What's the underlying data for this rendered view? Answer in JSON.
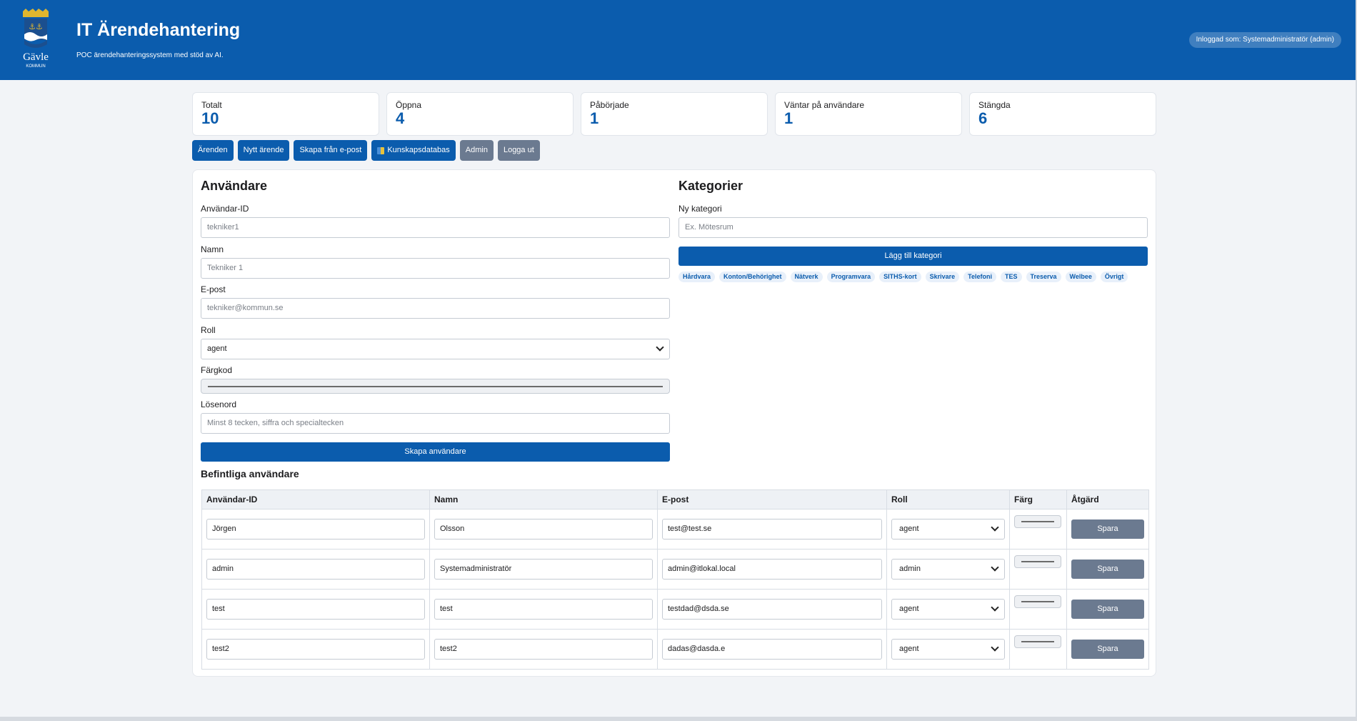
{
  "header": {
    "title": "IT Ärendehantering",
    "subtitle": "POC ärendehanteringssystem med stöd av AI.",
    "logo_text": "Gävle",
    "logo_subtext": "KOMMUN",
    "login_status": "Inloggad som: Systemadministratör (admin)"
  },
  "stats": [
    {
      "label": "Totalt",
      "value": "10"
    },
    {
      "label": "Öppna",
      "value": "4"
    },
    {
      "label": "Påbörjade",
      "value": "1"
    },
    {
      "label": "Väntar på användare",
      "value": "1"
    },
    {
      "label": "Stängda",
      "value": "6"
    }
  ],
  "nav": {
    "arenden": "Ärenden",
    "nytt_arende": "Nytt ärende",
    "skapa_fran_epost": "Skapa från e-post",
    "kunskapsdatabas": "Kunskapsdatabas",
    "admin": "Admin",
    "logga_ut": "Logga ut"
  },
  "users_form": {
    "title": "Användare",
    "user_id_label": "Användar-ID",
    "user_id_placeholder": "tekniker1",
    "name_label": "Namn",
    "name_placeholder": "Tekniker 1",
    "email_label": "E-post",
    "email_placeholder": "tekniker@kommun.se",
    "role_label": "Roll",
    "role_value": "agent",
    "color_label": "Färgkod",
    "password_label": "Lösenord",
    "password_placeholder": "Minst 8 tecken, siffra och specialtecken",
    "create_button": "Skapa användare"
  },
  "categories": {
    "title": "Kategorier",
    "new_label": "Ny kategori",
    "new_placeholder": "Ex. Mötesrum",
    "add_button": "Lägg till kategori",
    "items": [
      "Hårdvara",
      "Konton/Behörighet",
      "Nätverk",
      "Programvara",
      "SITHS-kort",
      "Skrivare",
      "Telefoni",
      "TES",
      "Treserva",
      "Welbee",
      "Övrigt"
    ]
  },
  "existing_users": {
    "title": "Befintliga användare",
    "columns": [
      "Användar-ID",
      "Namn",
      "E-post",
      "Roll",
      "Färg",
      "Åtgärd"
    ],
    "save_label": "Spara",
    "rows": [
      {
        "id": "Jörgen",
        "name": "Olsson",
        "email": "test@test.se",
        "role": "agent"
      },
      {
        "id": "admin",
        "name": "Systemadministratör",
        "email": "admin@itlokal.local",
        "role": "admin"
      },
      {
        "id": "test",
        "name": "test",
        "email": "testdad@dsda.se",
        "role": "agent"
      },
      {
        "id": "test2",
        "name": "test2",
        "email": "dadas@dasda.e",
        "role": "agent"
      }
    ]
  },
  "colors": {
    "brand": "#0b5cad",
    "secondary_button": "#6b7a90",
    "background": "#f2f4f7"
  }
}
